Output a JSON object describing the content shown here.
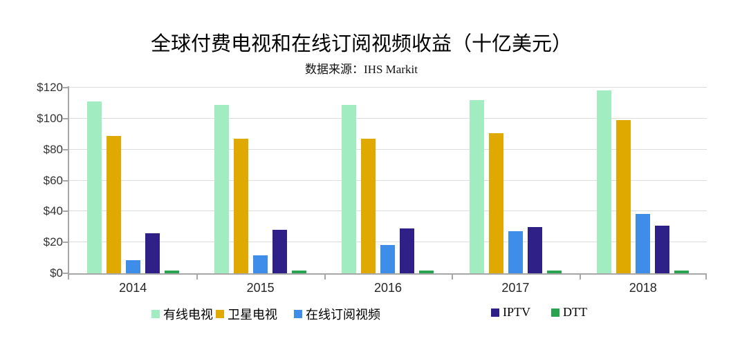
{
  "chart_data": {
    "type": "bar",
    "title": "全球付费电视和在线订阅视频收益（十亿美元）",
    "subtitle": "数据来源：IHS Markit",
    "categories": [
      "2014",
      "2015",
      "2016",
      "2017",
      "2018"
    ],
    "series": [
      {
        "name": "有线电视",
        "color": "#a2ecc2",
        "values": [
          111,
          109,
          109,
          112,
          118
        ]
      },
      {
        "name": "卫星电视",
        "color": "#dfa900",
        "values": [
          89,
          87,
          87,
          90.5,
          99
        ]
      },
      {
        "name": "在线订阅视频",
        "color": "#3e8ee9",
        "values": [
          8.5,
          11.5,
          18.5,
          27,
          38.5
        ]
      },
      {
        "name": "IPTV",
        "color": "#2e2087",
        "values": [
          26,
          28,
          29,
          30,
          31
        ]
      },
      {
        "name": "DTT",
        "color": "#28a350",
        "values": [
          2,
          2,
          2,
          2,
          2
        ]
      }
    ],
    "xlabel": "",
    "ylabel": "",
    "ylim": [
      0,
      120
    ],
    "ytick_step": 20,
    "ytick_labels": [
      "$0",
      "$20",
      "$40",
      "$60",
      "$80",
      "$100",
      "$120"
    ],
    "grid": true,
    "legend_position": "bottom",
    "axis_color": "#a6a6a6",
    "gridline_color": "#dcdcdc"
  }
}
